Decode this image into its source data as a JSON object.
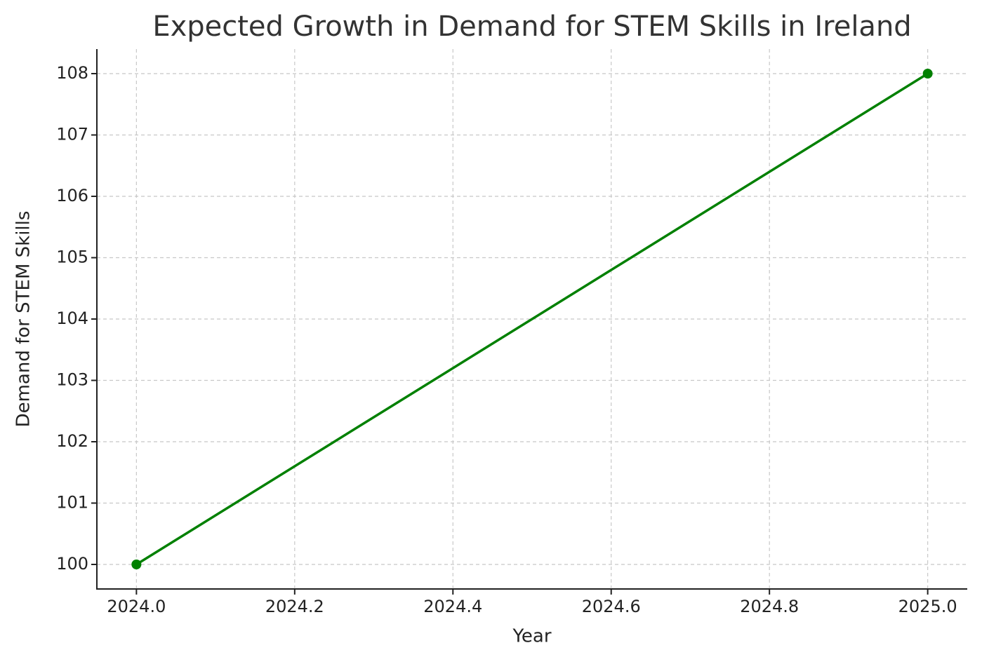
{
  "chart_data": {
    "type": "line",
    "title": "Expected Growth in Demand for STEM Skills in Ireland",
    "xlabel": "Year",
    "ylabel": "Demand for STEM Skills",
    "x": [
      2024,
      2025
    ],
    "values": [
      100,
      108
    ],
    "color": "#008000",
    "markers": true,
    "xlim": [
      2023.95,
      2025.05
    ],
    "xticks": [
      {
        "value": 2024,
        "label": "2024.0"
      },
      2024.2,
      2024.4,
      2024.6,
      2024.8,
      {
        "value": 2025,
        "label": "2025.0"
      }
    ],
    "ylim": [
      99.6,
      108.4
    ],
    "yticks": [
      100,
      101,
      102,
      103,
      104,
      105,
      106,
      107,
      108
    ],
    "grid": true
  }
}
